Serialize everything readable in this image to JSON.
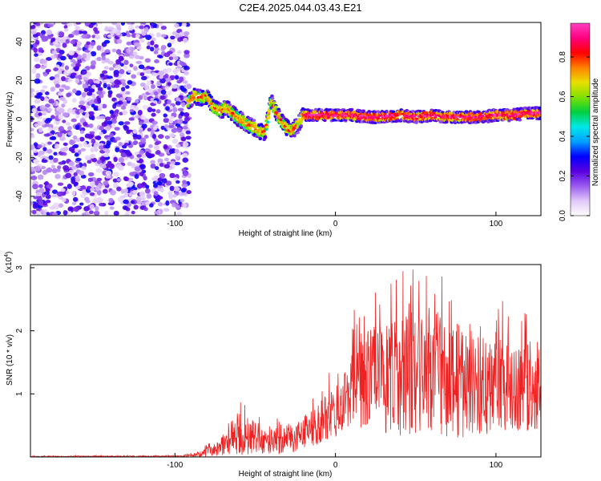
{
  "title": "C2E4.2025.044.03.43.E21",
  "chart_data": [
    {
      "type": "heatmap",
      "xlabel": "Height of straight line (km)",
      "ylabel": "Frequency (Hz)",
      "xlim": [
        -190,
        128
      ],
      "ylim": [
        -50,
        50
      ],
      "xticks": [
        -100,
        0,
        100
      ],
      "yticks": [
        -40,
        -20,
        0,
        20,
        40
      ],
      "colorbar": {
        "label": "Normalized spectral amplitude",
        "range": [
          0,
          0.97
        ],
        "ticks": [
          "0.0",
          "0.2",
          "0.4",
          "0.6",
          "0.8"
        ],
        "colors": [
          "#ffffff",
          "#e0c8f8",
          "#9a5cf0",
          "#5a00e0",
          "#0000ff",
          "#00a0ff",
          "#00e8e8",
          "#00d040",
          "#80e000",
          "#e8e000",
          "#ff8000",
          "#ff0000",
          "#ff0080",
          "#ff40c0"
        ]
      },
      "noise_region": {
        "x": [
          -190,
          -93
        ],
        "f": [
          -50,
          50
        ],
        "amplitude": [
          0.05,
          0.3
        ]
      },
      "ridge": [
        {
          "x": -92,
          "f": 8
        },
        {
          "x": -88,
          "f": 12
        },
        {
          "x": -84,
          "f": 11
        },
        {
          "x": -80,
          "f": 12
        },
        {
          "x": -76,
          "f": 6
        },
        {
          "x": -72,
          "f": 4
        },
        {
          "x": -68,
          "f": 6
        },
        {
          "x": -64,
          "f": 3
        },
        {
          "x": -60,
          "f": 0
        },
        {
          "x": -56,
          "f": -2
        },
        {
          "x": -52,
          "f": -4
        },
        {
          "x": -48,
          "f": -6
        },
        {
          "x": -44,
          "f": -7
        },
        {
          "x": -40,
          "f": 9
        },
        {
          "x": -36,
          "f": 2
        },
        {
          "x": -32,
          "f": -3
        },
        {
          "x": -28,
          "f": -6
        },
        {
          "x": -24,
          "f": -4
        },
        {
          "x": -20,
          "f": 2
        },
        {
          "x": -10,
          "f": 2
        },
        {
          "x": 0,
          "f": 2
        },
        {
          "x": 10,
          "f": 2
        },
        {
          "x": 20,
          "f": 1
        },
        {
          "x": 30,
          "f": 1
        },
        {
          "x": 40,
          "f": 2
        },
        {
          "x": 50,
          "f": 1
        },
        {
          "x": 60,
          "f": 2
        },
        {
          "x": 70,
          "f": 1
        },
        {
          "x": 80,
          "f": 1
        },
        {
          "x": 90,
          "f": 1
        },
        {
          "x": 100,
          "f": 2
        },
        {
          "x": 110,
          "f": 2
        },
        {
          "x": 120,
          "f": 3
        },
        {
          "x": 128,
          "f": 3
        }
      ]
    },
    {
      "type": "line",
      "xlabel": "Height of straight line (km)",
      "ylabel": "SNR (10 * v/v)",
      "y_multiplier": "(x10",
      "y_multiplier_exp": "4",
      "y_multiplier_close": ")",
      "xlim": [
        -190,
        128
      ],
      "ylim": [
        0,
        3.05
      ],
      "xticks": [
        -100,
        0,
        100
      ],
      "yticks": [
        1,
        2,
        3
      ],
      "color": "#ee2222",
      "envelope": [
        {
          "x": -190,
          "low": 0.0,
          "high": 0.02
        },
        {
          "x": -95,
          "low": 0.0,
          "high": 0.03
        },
        {
          "x": -85,
          "low": 0.0,
          "high": 0.12
        },
        {
          "x": -75,
          "low": 0.02,
          "high": 0.3
        },
        {
          "x": -65,
          "low": 0.05,
          "high": 0.6
        },
        {
          "x": -58,
          "low": 0.05,
          "high": 1.05
        },
        {
          "x": -45,
          "low": 0.05,
          "high": 0.55
        },
        {
          "x": -35,
          "low": 0.05,
          "high": 0.65
        },
        {
          "x": -25,
          "low": 0.1,
          "high": 0.75
        },
        {
          "x": -15,
          "low": 0.15,
          "high": 0.95
        },
        {
          "x": -5,
          "low": 0.3,
          "high": 1.3
        },
        {
          "x": 5,
          "low": 0.4,
          "high": 1.6
        },
        {
          "x": 15,
          "low": 0.5,
          "high": 2.75
        },
        {
          "x": 25,
          "low": 0.45,
          "high": 2.7
        },
        {
          "x": 35,
          "low": 0.4,
          "high": 2.8
        },
        {
          "x": 47,
          "low": 0.4,
          "high": 3.05
        },
        {
          "x": 55,
          "low": 0.4,
          "high": 2.95
        },
        {
          "x": 65,
          "low": 0.4,
          "high": 3.05
        },
        {
          "x": 75,
          "low": 0.35,
          "high": 2.8
        },
        {
          "x": 90,
          "low": 0.4,
          "high": 2.5
        },
        {
          "x": 105,
          "low": 0.4,
          "high": 2.5
        },
        {
          "x": 118,
          "low": 0.4,
          "high": 2.45
        },
        {
          "x": 128,
          "low": 0.5,
          "high": 1.9
        }
      ]
    }
  ]
}
